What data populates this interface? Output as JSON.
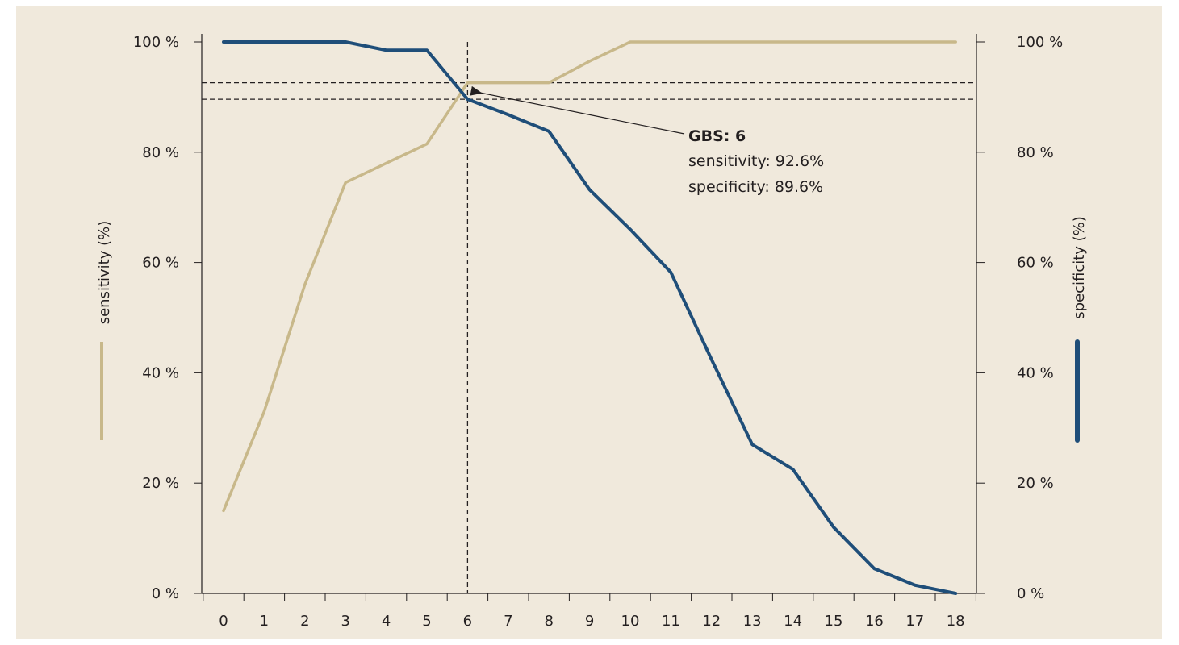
{
  "chart_data": {
    "type": "line",
    "title": "",
    "x": [
      "0",
      "1",
      "2",
      "3",
      "4",
      "5",
      "6",
      "7",
      "8",
      "9",
      "10",
      "11",
      "12",
      "13",
      "14",
      "15",
      "16",
      "17",
      "18"
    ],
    "series": [
      {
        "name": "sensitivity (%)",
        "axis": "left",
        "color": "#c8b88a",
        "values": [
          15,
          33,
          56,
          74.5,
          78,
          81.5,
          92.6,
          92.6,
          92.6,
          96.5,
          100,
          100,
          100,
          100,
          100,
          100,
          100,
          100,
          100
        ]
      },
      {
        "name": "specificity (%)",
        "axis": "right",
        "color": "#1f4e79",
        "values": [
          100,
          100,
          100,
          100,
          98.5,
          98.5,
          89.6,
          86.8,
          83.8,
          73.2,
          66,
          58.2,
          42.4,
          27,
          22.5,
          12,
          4.5,
          1.5,
          0
        ]
      }
    ],
    "y_left": {
      "label": "sensitivity (%)",
      "ticks": [
        "0 %",
        "20 %",
        "40 %",
        "60 %",
        "80 %",
        "100 %"
      ],
      "range": [
        0,
        100
      ]
    },
    "y_right": {
      "label": "specificity (%)",
      "ticks": [
        "0 %",
        "20 %",
        "40 %",
        "60 %",
        "80 %",
        "100 %"
      ],
      "range": [
        0,
        100
      ]
    },
    "cutoff": {
      "x": "6",
      "sensitivity": 92.6,
      "specificity": 89.6
    },
    "annotation": {
      "title": "GBS: 6",
      "line1": "sensitivity: 92.6%",
      "line2": "specificity: 89.6%"
    },
    "grid": false
  }
}
